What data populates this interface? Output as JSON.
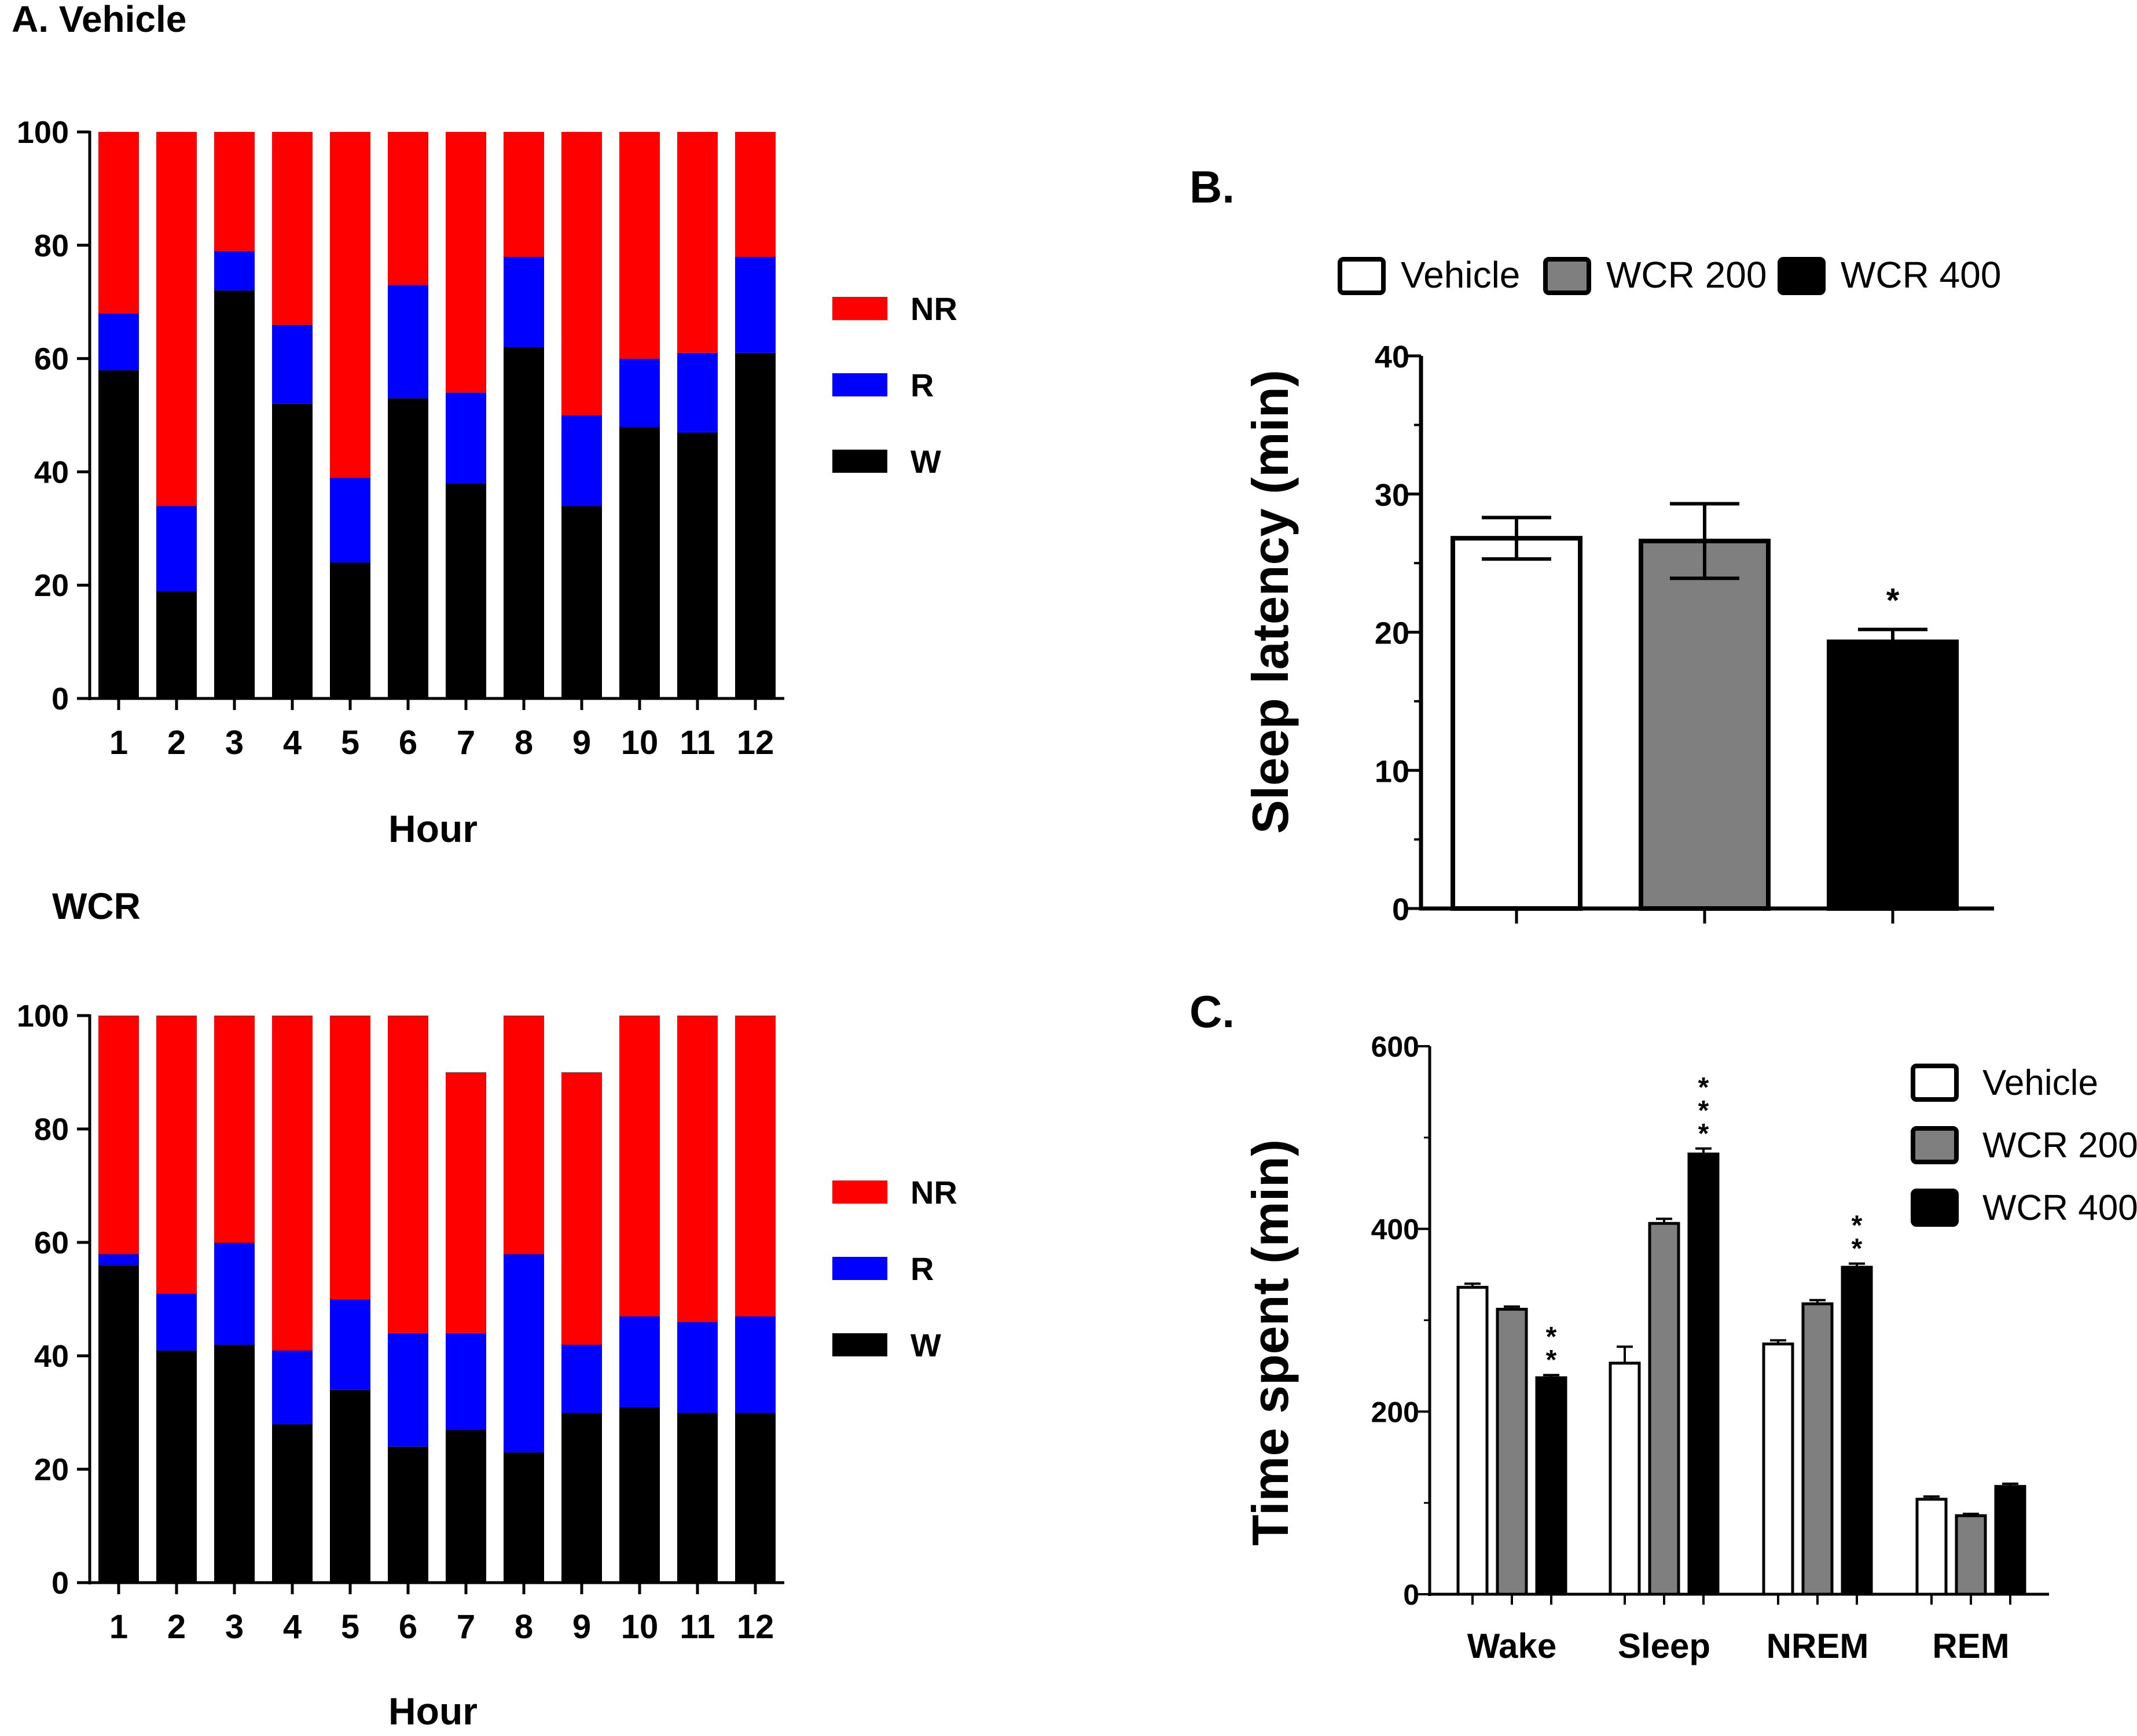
{
  "chart_data": [
    {
      "type": "stacked-bar",
      "panel": "A. Vehicle",
      "title": "A. Vehicle",
      "xlabel": "Hour",
      "ylabel": "",
      "ylim": [
        0,
        100
      ],
      "yticks": [
        "0",
        "20",
        "40",
        "60",
        "80",
        "100"
      ],
      "categories": [
        "1",
        "2",
        "3",
        "4",
        "5",
        "6",
        "7",
        "8",
        "9",
        "10",
        "11",
        "12"
      ],
      "series": [
        {
          "name": "W",
          "color": "#000000",
          "values": [
            58,
            19,
            72,
            52,
            24,
            53,
            38,
            62,
            34,
            48,
            47,
            61
          ]
        },
        {
          "name": "R",
          "color": "#0000ff",
          "values": [
            10,
            15,
            7,
            14,
            15,
            20,
            16,
            16,
            16,
            12,
            14,
            17
          ]
        },
        {
          "name": "NR",
          "color": "#ff0000",
          "values": [
            32,
            66,
            21,
            34,
            61,
            27,
            46,
            22,
            50,
            40,
            39,
            22
          ]
        }
      ],
      "legend": [
        "NR",
        "R",
        "W"
      ]
    },
    {
      "type": "stacked-bar",
      "panel": "WCR",
      "title": "WCR",
      "xlabel": "Hour",
      "ylabel": "",
      "ylim": [
        0,
        100
      ],
      "yticks": [
        "0",
        "20",
        "40",
        "60",
        "80",
        "100"
      ],
      "categories": [
        "1",
        "2",
        "3",
        "4",
        "5",
        "6",
        "7",
        "8",
        "9",
        "10",
        "11",
        "12"
      ],
      "series": [
        {
          "name": "W",
          "color": "#000000",
          "values": [
            56,
            41,
            42,
            28,
            34,
            24,
            27,
            23,
            30,
            31,
            30,
            30
          ]
        },
        {
          "name": "R",
          "color": "#0000ff",
          "values": [
            2,
            10,
            18,
            13,
            16,
            20,
            17,
            35,
            12,
            16,
            16,
            17
          ]
        },
        {
          "name": "NR",
          "color": "#ff0000",
          "values": [
            42,
            49,
            40,
            59,
            50,
            56,
            46,
            42,
            48,
            53,
            54,
            53
          ]
        }
      ],
      "legend": [
        "NR",
        "R",
        "W"
      ]
    },
    {
      "type": "bar",
      "panel": "B.",
      "title": "B.",
      "ylabel": "Sleep latency (min)",
      "ylim": [
        0,
        40
      ],
      "yticks": [
        "0",
        "10",
        "20",
        "30",
        "40"
      ],
      "categories": [
        "Vehicle",
        "WCR 200",
        "WCR 400"
      ],
      "values": [
        26.8,
        26.6,
        19.3
      ],
      "errors": [
        1.5,
        2.7,
        0.9
      ],
      "colors": [
        "#ffffff",
        "#7f7f7f",
        "#000000"
      ],
      "annotations": [
        "",
        "",
        "*"
      ],
      "legend": [
        "Vehicle",
        "WCR 200",
        "WCR 400"
      ]
    },
    {
      "type": "grouped-bar",
      "panel": "C.",
      "title": "C.",
      "ylabel": "Time spent (min)",
      "ylim": [
        0,
        600
      ],
      "yticks": [
        "0",
        "200",
        "400",
        "600"
      ],
      "categories": [
        "Wake",
        "Sleep",
        "NREM",
        "REM"
      ],
      "series": [
        {
          "name": "Vehicle",
          "color": "#ffffff",
          "values": [
            336,
            253,
            274,
            104
          ],
          "errors": [
            4,
            18,
            4,
            3
          ]
        },
        {
          "name": "WCR 200",
          "color": "#7f7f7f",
          "values": [
            312,
            406,
            318,
            86
          ],
          "errors": [
            3,
            5,
            4,
            2
          ]
        },
        {
          "name": "WCR 400",
          "color": "#000000",
          "values": [
            237,
            482,
            358,
            118
          ],
          "errors": [
            3,
            6,
            4,
            3
          ]
        }
      ],
      "annotations": [
        {
          "category": "Wake",
          "series": "WCR 400",
          "text": "**"
        },
        {
          "category": "Sleep",
          "series": "WCR 400",
          "text": "***"
        },
        {
          "category": "NREM",
          "series": "WCR 400",
          "text": "**"
        }
      ],
      "legend": [
        "Vehicle",
        "WCR 200",
        "WCR 400"
      ]
    }
  ]
}
